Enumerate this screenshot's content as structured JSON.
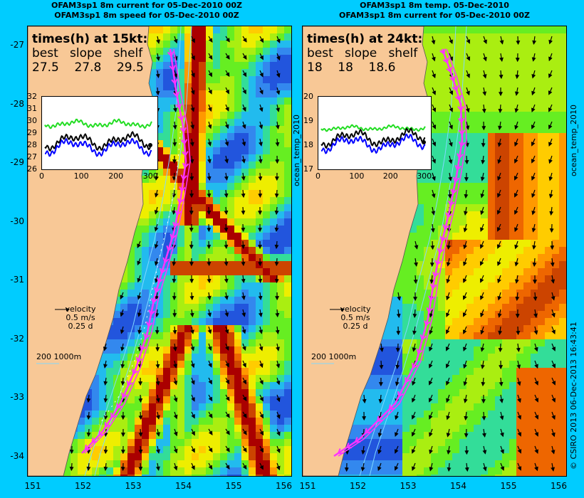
{
  "left_panel": {
    "title_line1": "OFAM3sp1 8m current for 05-Dec-2010 00Z",
    "title_line2": "OFAM3sp1 8m speed for 05-Dec-2010 00Z",
    "times_title": "times(h) at 15kt:",
    "times_headers": [
      "best",
      "slope",
      "shelf"
    ],
    "times_values": [
      "27.5",
      "27.8",
      "29.5"
    ],
    "inset_yticks": [
      "32",
      "31",
      "30",
      "29",
      "28",
      "27",
      "26"
    ],
    "inset_xticks": [
      "0",
      "100",
      "200",
      "300"
    ],
    "vertical_label": "ocean_temp_2010"
  },
  "right_panel": {
    "title_line1": "OFAM3sp1 8m temp. 05-Dec-2010",
    "title_line2": "OFAM3sp1 8m current for 05-Dec-2010 00Z",
    "times_title": "times(h) at 24kt:",
    "times_headers": [
      "best",
      "slope",
      "shelf"
    ],
    "times_values": [
      "18",
      "18",
      "18.6"
    ],
    "inset_yticks": [
      "20",
      "19",
      "18",
      "17"
    ],
    "inset_xticks": [
      "0",
      "100",
      "200",
      "300"
    ],
    "vertical_label": "ocean_temp_2010"
  },
  "legend": {
    "velocity_label": "velocity",
    "speed": "0.5 m/s",
    "duration": "0.25 d",
    "depth_contours": "200  1000m"
  },
  "axes": {
    "lat_ticks": [
      "-27",
      "-28",
      "-29",
      "-30",
      "-31",
      "-32",
      "-33",
      "-34"
    ],
    "lon_ticks": [
      "151",
      "152",
      "153",
      "154",
      "155",
      "156"
    ]
  },
  "footer": "© CSIRO 2013   06-Dec-2013 16:43:41",
  "colors": {
    "background": "#00ccff",
    "land": "#f8c896",
    "route": "#ff33ff",
    "inset_best": "#000000",
    "inset_slope": "#0000ff",
    "inset_shelf": "#22dd22"
  }
}
